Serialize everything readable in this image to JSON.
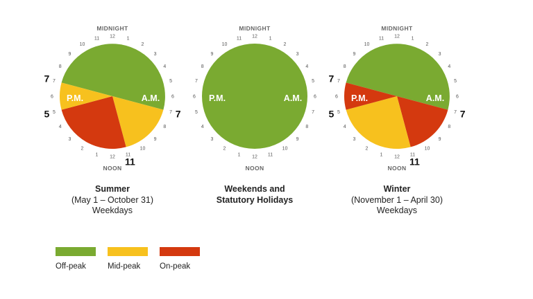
{
  "chart_data": [
    {
      "type": "pie",
      "title": "Summer",
      "subtitle": [
        "(May 1 – October 31)",
        "Weekdays"
      ],
      "top_label": "MIDNIGHT",
      "bottom_label": "NOON",
      "am_label": "A.M.",
      "pm_label": "P.M.",
      "slices": [
        {
          "period": "Off-peak",
          "start_hour": 19,
          "end_hour": 7,
          "color": "#7aaa31"
        },
        {
          "period": "Mid-peak",
          "start_hour": 7,
          "end_hour": 11,
          "color": "#f7c11e"
        },
        {
          "period": "On-peak",
          "start_hour": 11,
          "end_hour": 17,
          "color": "#d4390f"
        },
        {
          "period": "Mid-peak",
          "start_hour": 17,
          "end_hour": 19,
          "color": "#f7c11e"
        }
      ],
      "boundary_labels": [
        {
          "text": "7",
          "hour": 7
        },
        {
          "text": "11",
          "hour": 11
        },
        {
          "text": "5",
          "hour": 17
        },
        {
          "text": "7",
          "hour": 19
        }
      ]
    },
    {
      "type": "pie",
      "title": "Weekends and",
      "subtitle": [
        "Statutory Holidays"
      ],
      "top_label": "MIDNIGHT",
      "bottom_label": "NOON",
      "am_label": "A.M.",
      "pm_label": "P.M.",
      "slices": [
        {
          "period": "Off-peak",
          "start_hour": 0,
          "end_hour": 24,
          "color": "#7aaa31"
        }
      ],
      "boundary_labels": []
    },
    {
      "type": "pie",
      "title": "Winter",
      "subtitle": [
        "(November 1 – April 30)",
        "Weekdays"
      ],
      "top_label": "MIDNIGHT",
      "bottom_label": "NOON",
      "am_label": "A.M.",
      "pm_label": "P.M.",
      "slices": [
        {
          "period": "Off-peak",
          "start_hour": 19,
          "end_hour": 7,
          "color": "#7aaa31"
        },
        {
          "period": "On-peak",
          "start_hour": 7,
          "end_hour": 11,
          "color": "#d4390f"
        },
        {
          "period": "Mid-peak",
          "start_hour": 11,
          "end_hour": 17,
          "color": "#f7c11e"
        },
        {
          "period": "On-peak",
          "start_hour": 17,
          "end_hour": 19,
          "color": "#d4390f"
        }
      ],
      "boundary_labels": [
        {
          "text": "7",
          "hour": 7
        },
        {
          "text": "11",
          "hour": 11
        },
        {
          "text": "5",
          "hour": 17
        },
        {
          "text": "7",
          "hour": 19
        }
      ]
    }
  ],
  "hour_ticks": [
    "12",
    "1",
    "2",
    "3",
    "4",
    "5",
    "6",
    "7",
    "8",
    "9",
    "10",
    "11",
    "12",
    "1",
    "2",
    "3",
    "4",
    "5",
    "6",
    "7",
    "8",
    "9",
    "10",
    "11"
  ],
  "legend": [
    {
      "label": "Off-peak",
      "color": "#7aaa31"
    },
    {
      "label": "Mid-peak",
      "color": "#f7c11e"
    },
    {
      "label": "On-peak",
      "color": "#d4390f"
    }
  ]
}
